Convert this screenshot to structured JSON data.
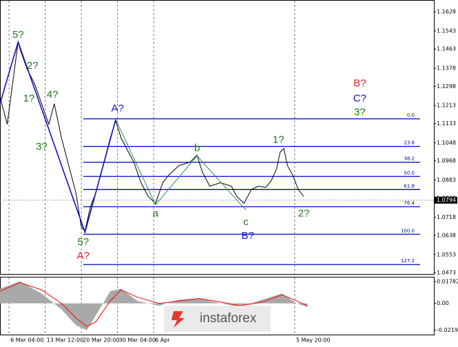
{
  "chart_data": [
    {
      "type": "line",
      "xlim": [
        0,
        240
      ],
      "ylim": [
        1.0467,
        1.1677
      ],
      "yticks": [
        1.1628,
        1.1543,
        1.1463,
        1.1378,
        1.1298,
        1.1213,
        1.1133,
        1.1048,
        1.0968,
        1.0883,
        1.0803,
        1.0718,
        1.0638,
        1.0553,
        1.0473
      ],
      "xticks": [
        {
          "value": 5,
          "label": "6 Mar 04:00"
        },
        {
          "value": 25,
          "label": "13 Mar 12:00"
        },
        {
          "value": 45,
          "label": "20 Mar 20:00"
        },
        {
          "value": 65,
          "label": "30 Mar 04:00"
        },
        {
          "value": 85,
          "label": "6 Apr"
        },
        {
          "value": 163,
          "label": "5 May 20:00"
        }
      ],
      "grid": true,
      "last_price": 1.0794,
      "series": [
        {
          "color": "#000000",
          "x": [
            0,
            4,
            10,
            11,
            15,
            19,
            23,
            27,
            30,
            34,
            38,
            42,
            45,
            47,
            50,
            53,
            57,
            61,
            64,
            67,
            70,
            74,
            78,
            82,
            86,
            90,
            93,
            99,
            105,
            109,
            112,
            116,
            122,
            128,
            131,
            135,
            139,
            143,
            147,
            150,
            153,
            155,
            157,
            159,
            162,
            165,
            168
          ],
          "values": [
            1.1251,
            1.113,
            1.1494,
            1.1464,
            1.1373,
            1.1312,
            1.1221,
            1.113,
            1.1221,
            1.1069,
            1.0947,
            1.0826,
            1.0674,
            1.0658,
            1.0765,
            1.0826,
            1.0947,
            1.1069,
            1.1145,
            1.1069,
            1.1023,
            1.0962,
            1.0871,
            1.081,
            1.078,
            1.0871,
            1.0902,
            1.0947,
            1.0962,
            1.0993,
            1.0917,
            1.0856,
            1.0871,
            1.0856,
            1.081,
            1.078,
            1.0841,
            1.0856,
            1.085,
            1.088,
            1.0932,
            1.1008,
            1.1023,
            1.0947,
            1.0902,
            1.0841,
            1.081
          ]
        },
        {
          "color": "#1010c8",
          "x": [
            0,
            10,
            47,
            64
          ],
          "values": [
            1.1221,
            1.1494,
            1.0652,
            1.1151
          ]
        },
        {
          "color": "#2e8b57",
          "x": [
            64,
            86,
            109,
            136
          ],
          "values": [
            1.1151,
            1.0774,
            1.099,
            1.075
          ]
        }
      ],
      "levels": [
        {
          "price": 1.1154,
          "label": "0.0"
        },
        {
          "price": 1.1032,
          "label": "23.6"
        },
        {
          "price": 1.0962,
          "label": "38.2"
        },
        {
          "price": 1.0899,
          "label": "50.0"
        },
        {
          "price": 1.0841,
          "label": "61.8"
        },
        {
          "price": 1.0765,
          "label": "76.4"
        },
        {
          "price": 1.0643,
          "label": "100.0"
        },
        {
          "price": 1.0509,
          "label": "127.2"
        }
      ],
      "level_color": "#0000cd",
      "annotations": [
        {
          "text": "5?",
          "x": 10,
          "y": 1.1525,
          "color": "#1a7a1a"
        },
        {
          "text": "2?",
          "x": 18,
          "y": 1.1388,
          "color": "#1a7a1a"
        },
        {
          "text": "1?",
          "x": 16,
          "y": 1.1242,
          "color": "#1a7a1a"
        },
        {
          "text": "4?",
          "x": 29,
          "y": 1.126,
          "color": "#1a7a1a"
        },
        {
          "text": "3?",
          "x": 23,
          "y": 1.1029,
          "color": "#1a7a1a"
        },
        {
          "text": "A?",
          "x": 65,
          "y": 1.1199,
          "color": "#1010c8"
        },
        {
          "text": "a",
          "x": 86,
          "y": 1.0734,
          "color": "#1a7a1a"
        },
        {
          "text": "b",
          "x": 109,
          "y": 1.1023,
          "color": "#1a7a1a"
        },
        {
          "text": "c",
          "x": 136,
          "y": 1.0695,
          "color": "#1a7a1a"
        },
        {
          "text": "B?",
          "x": 137,
          "y": 1.0634,
          "color": "#1010c8"
        },
        {
          "text": "1?",
          "x": 154,
          "y": 1.106,
          "color": "#1a7a1a"
        },
        {
          "text": "2?",
          "x": 168,
          "y": 1.0734,
          "color": "#1a7a1a"
        },
        {
          "text": "5?",
          "x": 46,
          "y": 1.0607,
          "color": "#1a7a1a"
        },
        {
          "text": "A?",
          "x": 46,
          "y": 1.0546,
          "color": "#e02020"
        },
        {
          "text": "B?",
          "x": 199,
          "y": 1.1309,
          "color": "#e02020"
        },
        {
          "text": "C?",
          "x": 199,
          "y": 1.1242,
          "color": "#1010c8"
        },
        {
          "text": "3?",
          "x": 199,
          "y": 1.1181,
          "color": "#1a7a1a"
        }
      ]
    },
    {
      "type": "area",
      "xlim": [
        0,
        240
      ],
      "ylim": [
        -0.0256,
        0.0212
      ],
      "yticks": [
        0.01782,
        {
          "value": 0,
          "label": "0.00"
        },
        -0.02198
      ],
      "x": [
        0,
        11,
        23,
        34,
        42,
        48,
        53,
        61,
        67,
        76,
        88,
        99,
        110,
        122,
        133,
        145,
        156,
        164,
        170
      ],
      "series": [
        {
          "color": "#a9a9a9",
          "values": [
            0.012,
            0.018,
            0.008,
            -0.005,
            -0.018,
            -0.022,
            -0.01,
            0.01,
            0.012,
            0.002,
            -0.002,
            0.003,
            0.004,
            0.0,
            -0.003,
            0.003,
            0.008,
            0.0,
            -0.003
          ]
        },
        {
          "color": "#ff0000",
          "values": [
            0.01,
            0.017,
            0.011,
            0.0,
            -0.012,
            -0.019,
            -0.015,
            0.002,
            0.011,
            0.005,
            0.0,
            0.002,
            0.004,
            0.001,
            -0.002,
            0.001,
            0.007,
            0.002,
            -0.002
          ]
        }
      ]
    }
  ],
  "watermark": "instaforex"
}
